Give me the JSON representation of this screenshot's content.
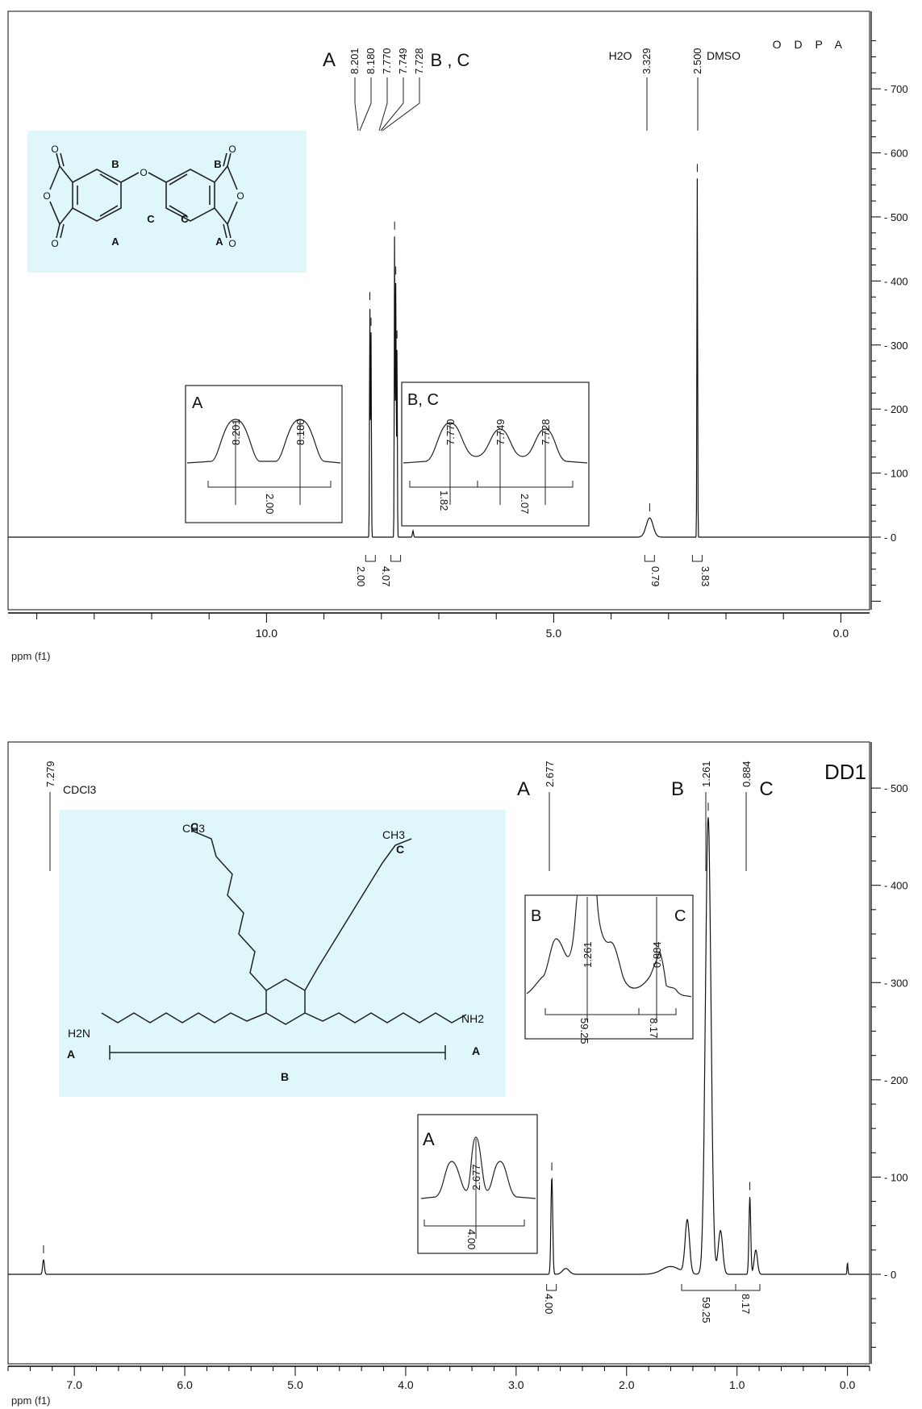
{
  "chart_data": [
    {
      "type": "line",
      "id": "odpa",
      "title": "O D P A",
      "xlabel": "ppm (f1)",
      "xlim": [
        14.5,
        -0.5
      ],
      "ylim": [
        -110,
        780
      ],
      "x_ticks": [
        "10.0",
        "5.0",
        "0.0"
      ],
      "y_ticks": [
        "700",
        "600",
        "500",
        "400",
        "300",
        "200",
        "100",
        "0"
      ],
      "peaks": [
        {
          "ppm": 8.201,
          "height": 360,
          "label": "8.201"
        },
        {
          "ppm": 8.18,
          "height": 320,
          "label": "8.180"
        },
        {
          "ppm": 7.77,
          "height": 470,
          "label": "7.770"
        },
        {
          "ppm": 7.749,
          "height": 400,
          "label": "7.749"
        },
        {
          "ppm": 7.728,
          "height": 300,
          "label": "7.728"
        },
        {
          "ppm": 3.329,
          "height": 30,
          "label": "3.329"
        },
        {
          "ppm": 2.5,
          "height": 560,
          "label": "2.500"
        }
      ],
      "peak_groups": [
        {
          "label": "A",
          "peaks": [
            "8.201",
            "8.180"
          ]
        },
        {
          "label": "B , C",
          "peaks": [
            "7.770",
            "7.749",
            "7.728"
          ]
        }
      ],
      "solvent_labels": [
        "H2O",
        "DMSO"
      ],
      "integrals": [
        {
          "ppm": 8.19,
          "value": "2.00"
        },
        {
          "ppm": 7.75,
          "value": "4.07"
        },
        {
          "ppm": 3.33,
          "value": "0.79"
        },
        {
          "ppm": 2.5,
          "value": "3.83"
        }
      ],
      "insets": [
        {
          "label": "A",
          "peaks": [
            "8.201",
            "8.180"
          ],
          "integral": "2.00"
        },
        {
          "label": "B, C",
          "peaks": [
            "7.770",
            "7.749",
            "7.728"
          ],
          "integrals": [
            "1.82",
            "2.07"
          ]
        }
      ],
      "structure": {
        "labels": [
          "B",
          "C",
          "A",
          "B",
          "C",
          "A"
        ],
        "atoms": [
          "O",
          "O",
          "O",
          "O",
          "O",
          "O",
          "O"
        ]
      }
    },
    {
      "type": "line",
      "id": "dd1",
      "title": "DD1",
      "xlabel": "ppm (f1)",
      "xlim": [
        7.6,
        -0.2
      ],
      "ylim": [
        -80,
        520
      ],
      "x_ticks": [
        "7.0",
        "6.0",
        "5.0",
        "4.0",
        "3.0",
        "2.0",
        "1.0",
        "0.0"
      ],
      "y_ticks": [
        "500",
        "400",
        "300",
        "200",
        "100",
        "0"
      ],
      "peaks": [
        {
          "ppm": 7.279,
          "height": 15,
          "label": "7.279"
        },
        {
          "ppm": 2.677,
          "height": 100,
          "label": "2.677"
        },
        {
          "ppm": 1.261,
          "height": 470,
          "label": "1.261"
        },
        {
          "ppm": 0.884,
          "height": 80,
          "label": "0.884"
        }
      ],
      "peak_groups": [
        {
          "label": "A",
          "peaks": [
            "2.677"
          ]
        },
        {
          "label": "B",
          "peaks": [
            "1.261"
          ]
        },
        {
          "label": "C",
          "peaks": [
            "0.884"
          ]
        }
      ],
      "solvent_labels": [
        "CDCl3"
      ],
      "integrals": [
        {
          "ppm": 2.68,
          "value": "4.00"
        },
        {
          "ppm": 1.26,
          "value": "59.25"
        },
        {
          "ppm": 0.88,
          "value": "8.17"
        }
      ],
      "insets": [
        {
          "label": "A",
          "peaks": [
            "2.677"
          ],
          "integral": "4.00"
        },
        {
          "labels": [
            "B",
            "C"
          ],
          "peaks": [
            "1.261",
            "0.884"
          ],
          "integrals": [
            "59.25",
            "8.17"
          ]
        }
      ],
      "structure": {
        "labels": [
          "C",
          "C",
          "A",
          "B",
          "A"
        ],
        "groups": [
          "CH3",
          "CH3",
          "H2N",
          "NH2"
        ]
      }
    }
  ]
}
